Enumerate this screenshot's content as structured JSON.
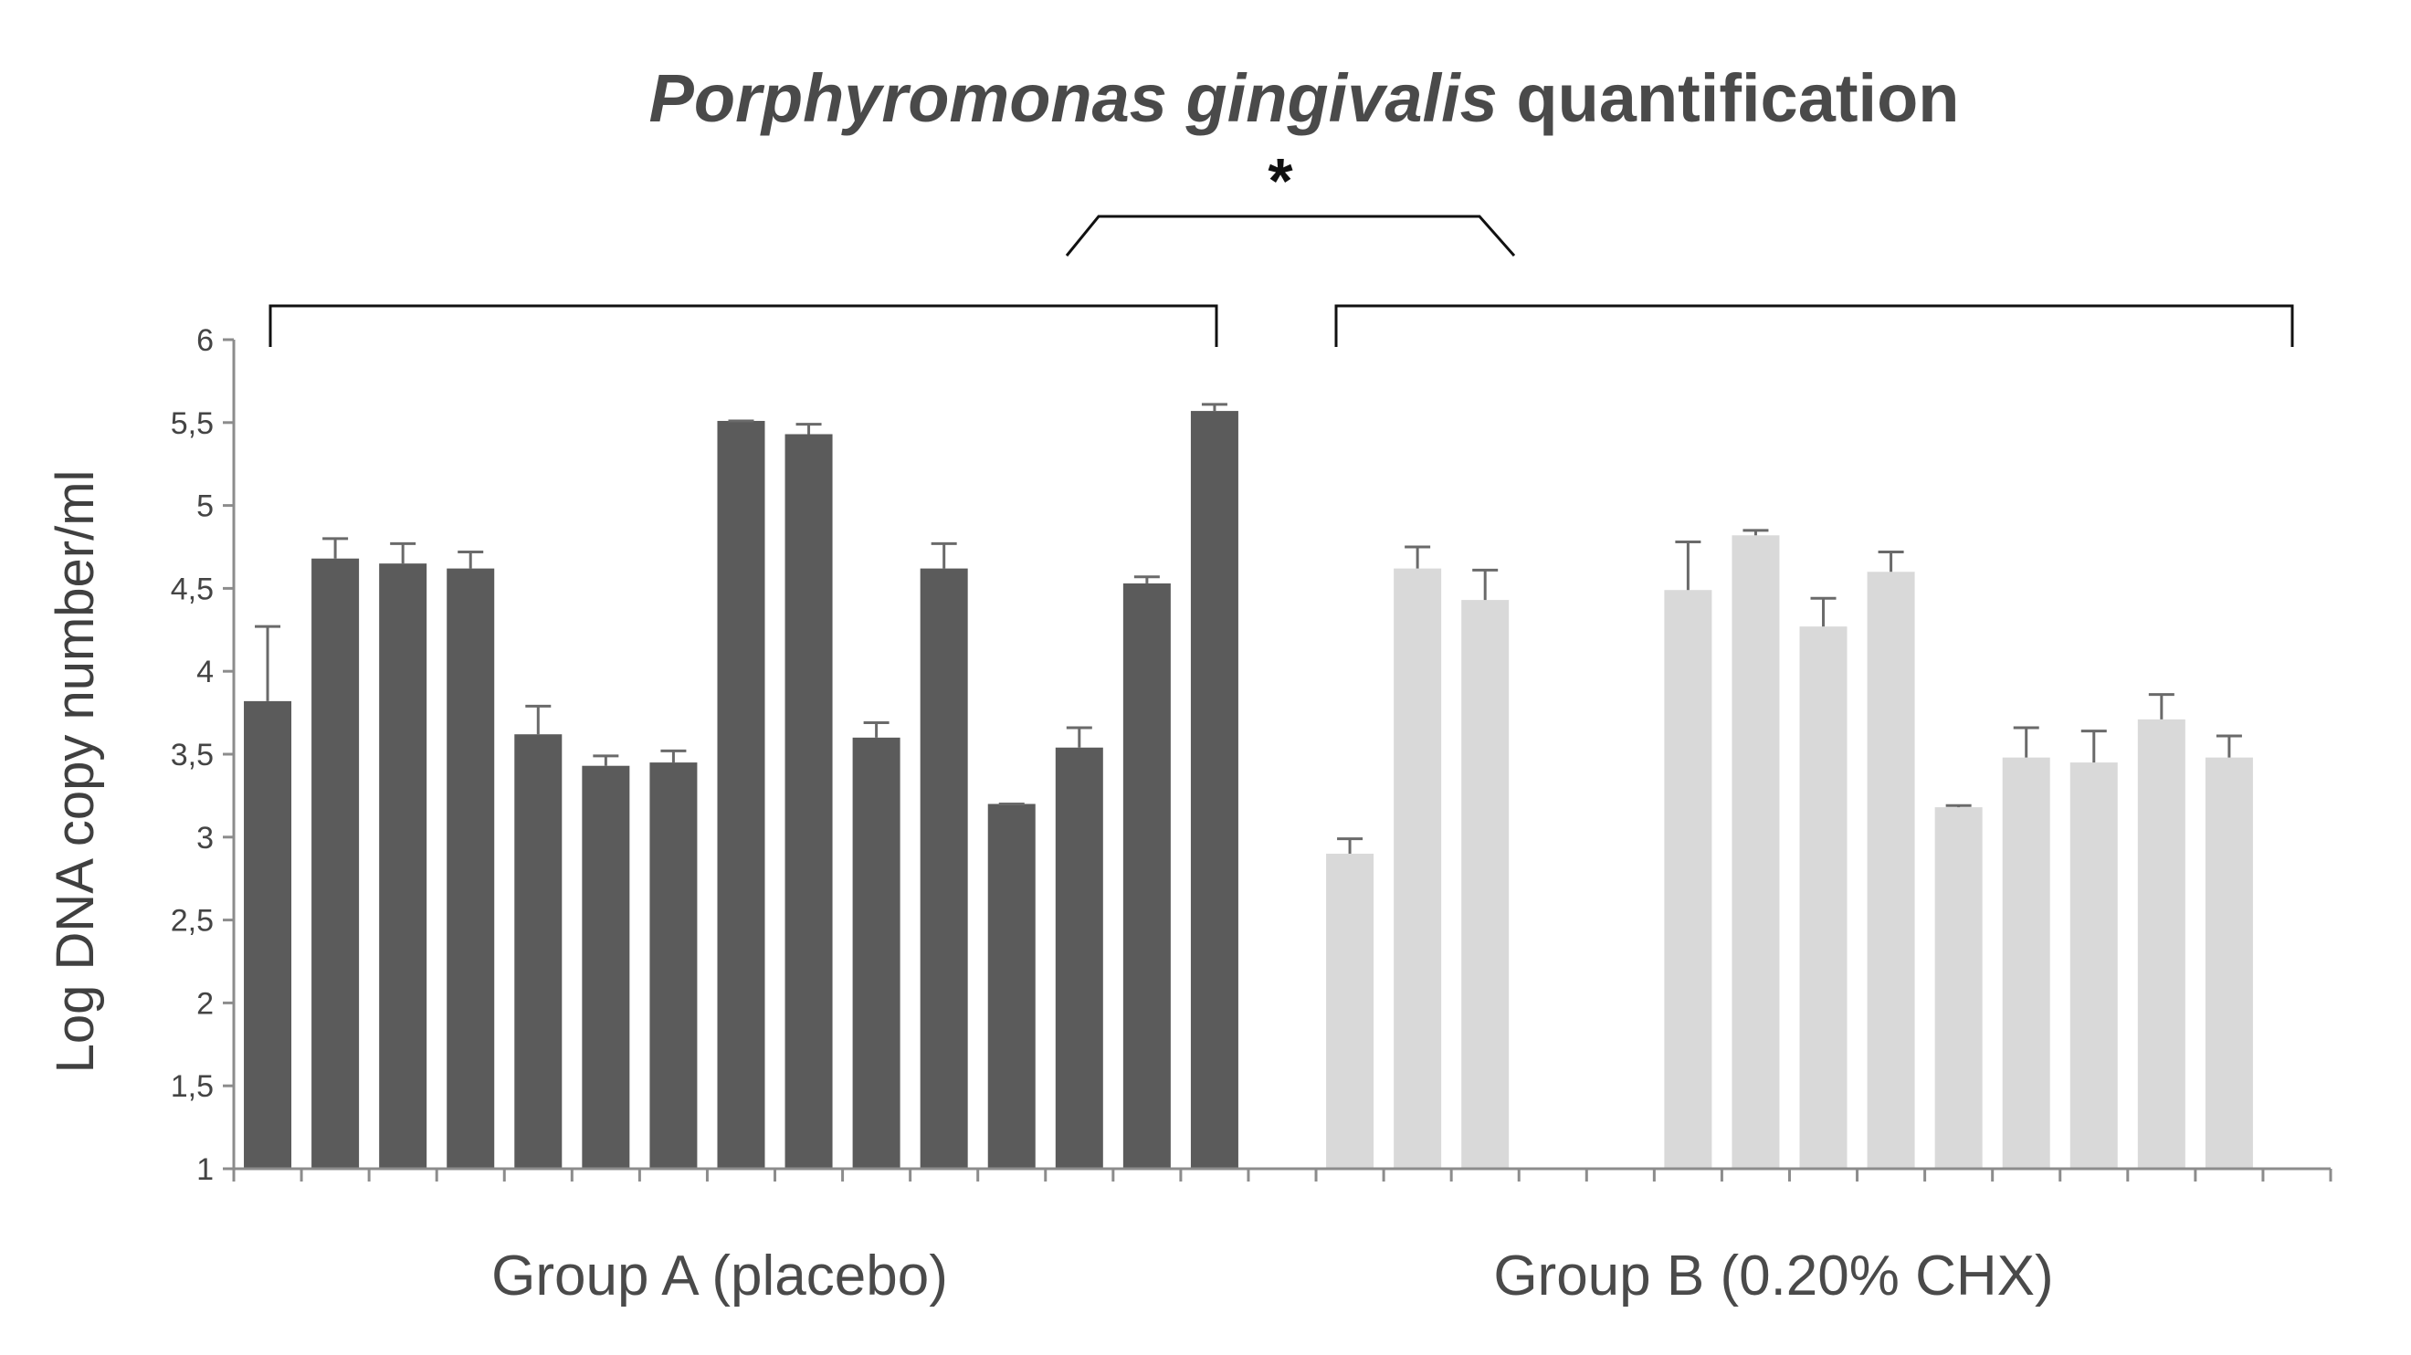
{
  "colors": {
    "group_a": "#5b5b5b",
    "group_b": "#d9d9d9",
    "axis": "#8c8c8c",
    "bracket": "#111111",
    "text": "#444444"
  },
  "chart_data": {
    "type": "bar",
    "title_italic": "Porphyromonas gingivalis",
    "title_rest": " quantification",
    "ylabel": "Log DNA copy number/ml",
    "ylim": [
      1,
      6
    ],
    "yticks": [
      "1",
      "1,5",
      "2",
      "2,5",
      "3",
      "3,5",
      "4",
      "4,5",
      "5",
      "5,5",
      "6"
    ],
    "significance_marker": "*",
    "grid": false,
    "legend": "none",
    "slots": 31,
    "groups": [
      {
        "name": "Group A (placebo)",
        "color": "#5b5b5b",
        "values": [
          3.82,
          4.68,
          4.65,
          4.62,
          3.62,
          3.43,
          3.45,
          5.51,
          5.43,
          3.6,
          4.62,
          3.2,
          3.54,
          4.53,
          5.57
        ],
        "errors": [
          0.45,
          0.12,
          0.12,
          0.1,
          0.17,
          0.06,
          0.07,
          0.0,
          0.06,
          0.09,
          0.15,
          0.0,
          0.12,
          0.04,
          0.04
        ]
      },
      {
        "name": "Group B (0.20% CHX)",
        "color": "#d9d9d9",
        "values": [
          2.9,
          4.62,
          4.43,
          null,
          null,
          4.49,
          4.82,
          4.27,
          4.6,
          3.18,
          3.48,
          3.45,
          3.71,
          3.48
        ],
        "errors": [
          0.09,
          0.13,
          0.18,
          null,
          null,
          0.29,
          0.03,
          0.17,
          0.12,
          0.01,
          0.18,
          0.19,
          0.15,
          0.13
        ]
      }
    ]
  }
}
